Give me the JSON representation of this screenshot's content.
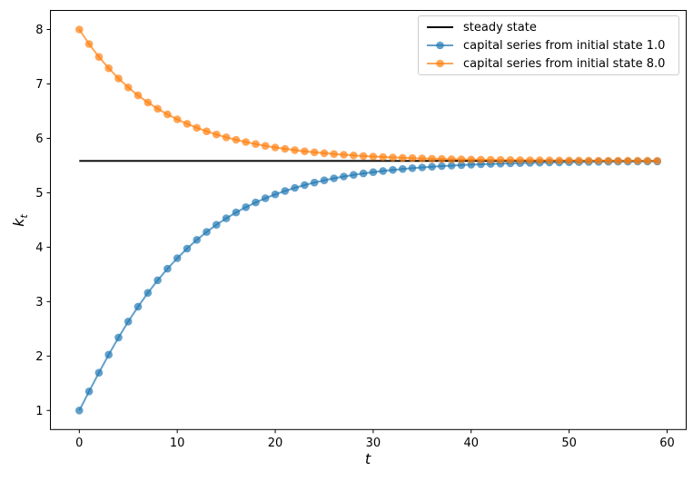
{
  "colors": {
    "steady_state": "#000000",
    "series_blue": "#1f77b4",
    "series_orange": "#ff7f0e",
    "legend_border": "#cccccc",
    "axes": "#000000"
  },
  "chart_data": {
    "type": "line",
    "title": "",
    "xlabel": "t",
    "ylabel": "k_t",
    "ylabel_main": "k",
    "ylabel_sub": "t",
    "xlim": [
      -2.95,
      61.95
    ],
    "ylim": [
      0.65,
      8.35
    ],
    "x_ticks": [
      0,
      10,
      20,
      30,
      40,
      50,
      60
    ],
    "y_ticks": [
      1,
      2,
      3,
      4,
      5,
      6,
      7,
      8
    ],
    "grid": false,
    "legend_position": "upper right",
    "steady_state_value": 5.5848,
    "marker": "o",
    "series": [
      {
        "name": "steady state",
        "color": "#000000",
        "alpha": 1,
        "style": "line",
        "x": [
          0,
          59
        ],
        "values": [
          5.5848,
          5.5848
        ]
      },
      {
        "name": "capital series from initial state 1.0",
        "color": "#1f77b4",
        "alpha": 0.7,
        "style": "line-markers",
        "initial_state": 1.0,
        "values": [
          1.0,
          1.35,
          1.6946,
          2.0261,
          2.3402,
          2.6344,
          2.9079,
          3.1605,
          3.3926,
          3.605,
          3.7988,
          3.9752,
          4.1354,
          4.2806,
          4.4119,
          4.5306,
          4.6377,
          4.7343,
          4.8213,
          4.8996,
          4.9701,
          5.0335,
          5.0904,
          5.1415,
          5.1874,
          5.2286,
          5.2656,
          5.2988,
          5.3285,
          5.3552,
          5.3791,
          5.4005,
          5.4197,
          5.4369,
          5.4523,
          5.4661,
          5.4785,
          5.4896,
          5.4995,
          5.5084,
          5.5164,
          5.5235,
          5.5299,
          5.5356,
          5.5407,
          5.5453,
          5.5494,
          5.5531,
          5.5564,
          5.5593,
          5.5619,
          5.5642,
          5.5663,
          5.5682,
          5.5699,
          5.5714,
          5.5728,
          5.574,
          5.5751,
          5.5761
        ]
      },
      {
        "name": "capital series from initial state 8.0",
        "color": "#ff7f0e",
        "alpha": 0.7,
        "style": "line-markers",
        "initial_state": 8.0,
        "values": [
          8.0,
          7.733,
          7.4966,
          7.2871,
          7.1013,
          6.9364,
          6.7899,
          6.6597,
          6.5438,
          6.4407,
          6.3489,
          6.2671,
          6.1942,
          6.1292,
          6.0712,
          6.0194,
          5.9732,
          5.932,
          5.8952,
          5.8623,
          5.8329,
          5.8066,
          5.7831,
          5.7621,
          5.7433,
          5.7265,
          5.7115,
          5.6981,
          5.6861,
          5.6754,
          5.6658,
          5.6572,
          5.6495,
          5.6426,
          5.6365,
          5.631,
          5.6261,
          5.6217,
          5.6178,
          5.6143,
          5.6111,
          5.6083,
          5.6058,
          5.6035,
          5.6015,
          5.5997,
          5.5981,
          5.5966,
          5.5953,
          5.5941,
          5.5931,
          5.5922,
          5.5914,
          5.5907,
          5.5901,
          5.5895,
          5.589,
          5.5886,
          5.5882,
          5.5878
        ]
      }
    ]
  }
}
